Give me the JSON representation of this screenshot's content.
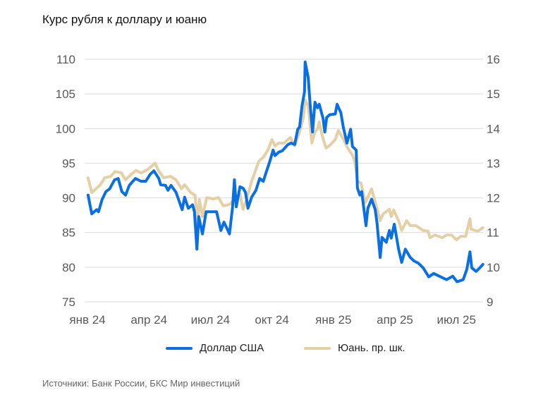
{
  "title": "Курс рубля к доллару и юаню",
  "source": "Источники: Банк России, БКС Мир инвестиций",
  "chart_data": {
    "type": "line",
    "title": "Курс рубля к доллару и юаню",
    "x_unit": "quarters since Jan 2024",
    "x_ticks": [
      0,
      1,
      2,
      3,
      4,
      5,
      6
    ],
    "x_tick_labels": [
      "янв 24",
      "апр 24",
      "июл 24",
      "окт 24",
      "янв 25",
      "апр 25",
      "июл 25"
    ],
    "xlim": [
      0,
      6.44
    ],
    "ylim_left": [
      75,
      110
    ],
    "ylim_right": [
      9,
      16
    ],
    "y_left_ticks": [
      "75",
      "80",
      "85",
      "90",
      "95",
      "100",
      "105",
      "110"
    ],
    "y_right_ticks": [
      "9",
      "10",
      "11",
      "12",
      "13",
      "14",
      "15",
      "16"
    ],
    "grid": true,
    "legend_position": "bottom",
    "series": [
      {
        "name": "Доллар США",
        "axis": "left",
        "color": "#0a6fe0",
        "x": [
          0.01,
          0.07,
          0.15,
          0.18,
          0.24,
          0.3,
          0.36,
          0.44,
          0.5,
          0.56,
          0.62,
          0.68,
          0.78,
          0.87,
          0.95,
          1.02,
          1.08,
          1.16,
          1.19,
          1.27,
          1.31,
          1.36,
          1.44,
          1.54,
          1.58,
          1.64,
          1.71,
          1.74,
          1.78,
          1.81,
          1.87,
          1.93,
          2.02,
          2.1,
          2.17,
          2.22,
          2.31,
          2.36,
          2.39,
          2.42,
          2.48,
          2.53,
          2.57,
          2.61,
          2.67,
          2.74,
          2.8,
          2.86,
          2.91,
          2.96,
          3.02,
          3.05,
          3.11,
          3.17,
          3.26,
          3.31,
          3.37,
          3.42,
          3.45,
          3.49,
          3.53,
          3.54,
          3.59,
          3.62,
          3.66,
          3.7,
          3.74,
          3.77,
          3.83,
          3.86,
          3.89,
          3.94,
          4.03,
          4.06,
          4.12,
          4.16,
          4.22,
          4.28,
          4.31,
          4.37,
          4.39,
          4.43,
          4.46,
          4.53,
          4.56,
          4.62,
          4.68,
          4.71,
          4.76,
          4.79,
          4.86,
          4.91,
          4.94,
          4.99,
          5.06,
          5.11,
          5.17,
          5.25,
          5.31,
          5.38,
          5.46,
          5.55,
          5.63,
          5.72,
          5.84,
          5.94,
          6.01,
          6.11,
          6.17,
          6.22,
          6.25,
          6.32,
          6.38,
          6.43
        ],
        "values": [
          90.4,
          87.7,
          88.3,
          88.0,
          89.8,
          90.9,
          91.3,
          92.6,
          92.8,
          90.9,
          90.4,
          91.8,
          92.8,
          92.4,
          92.4,
          93.4,
          93.9,
          92.8,
          91.9,
          91.8,
          91.1,
          91.8,
          90.8,
          88.3,
          90.1,
          88.5,
          89.0,
          88.0,
          82.6,
          87.3,
          84.8,
          88.0,
          88.0,
          88.0,
          85.3,
          86.5,
          84.8,
          88.7,
          92.6,
          88.7,
          91.6,
          91.4,
          90.8,
          88.5,
          90.1,
          91.1,
          92.8,
          92.4,
          93.8,
          95.1,
          96.9,
          96.1,
          96.6,
          96.8,
          97.7,
          97.9,
          97.7,
          99.9,
          100.2,
          103.3,
          105.3,
          109.6,
          107.4,
          103.6,
          99.5,
          103.8,
          103.0,
          103.5,
          101.5,
          99.5,
          101.6,
          102.0,
          102.1,
          103.5,
          102.3,
          100.2,
          97.9,
          99.9,
          97.4,
          96.9,
          91.4,
          90.4,
          90.9,
          86.0,
          88.5,
          89.8,
          88.3,
          86.3,
          81.4,
          84.3,
          83.6,
          85.3,
          84.2,
          86.2,
          82.6,
          80.7,
          82.6,
          81.4,
          80.9,
          80.6,
          79.9,
          78.6,
          79.1,
          78.7,
          78.2,
          78.7,
          77.9,
          78.2,
          79.7,
          82.2,
          79.9,
          79.4,
          79.9,
          80.4
        ]
      },
      {
        "name": "Юань. пр. шк.",
        "axis": "right",
        "color": "#e3d0a6",
        "x": [
          0.01,
          0.07,
          0.15,
          0.21,
          0.28,
          0.38,
          0.45,
          0.55,
          0.62,
          0.7,
          0.79,
          0.87,
          0.99,
          1.1,
          1.16,
          1.24,
          1.35,
          1.44,
          1.53,
          1.58,
          1.67,
          1.75,
          1.79,
          1.82,
          1.87,
          1.94,
          2.05,
          2.13,
          2.21,
          2.31,
          2.39,
          2.48,
          2.53,
          2.59,
          2.67,
          2.79,
          2.86,
          2.94,
          3.0,
          3.05,
          3.11,
          3.2,
          3.27,
          3.3,
          3.37,
          3.45,
          3.51,
          3.54,
          3.59,
          3.65,
          3.7,
          3.74,
          3.77,
          3.82,
          3.88,
          3.93,
          4.03,
          4.08,
          4.16,
          4.23,
          4.31,
          4.35,
          4.39,
          4.45,
          4.52,
          4.62,
          4.69,
          4.76,
          4.81,
          4.91,
          4.94,
          4.98,
          5.06,
          5.11,
          5.19,
          5.25,
          5.34,
          5.46,
          5.54,
          5.57,
          5.65,
          5.77,
          5.84,
          5.92,
          6.0,
          6.07,
          6.15,
          6.22,
          6.24,
          6.3,
          6.35,
          6.43
        ],
        "values": [
          12.58,
          12.15,
          12.28,
          12.38,
          12.58,
          12.62,
          12.76,
          12.72,
          12.52,
          12.66,
          12.79,
          12.72,
          12.83,
          13.0,
          12.77,
          12.58,
          12.62,
          12.52,
          12.26,
          12.38,
          12.17,
          12.07,
          11.24,
          11.95,
          11.46,
          12.01,
          11.97,
          12.01,
          11.77,
          11.81,
          11.95,
          12.11,
          11.67,
          11.95,
          12.48,
          13.07,
          13.17,
          13.4,
          13.68,
          13.5,
          13.58,
          13.58,
          13.7,
          13.74,
          13.5,
          13.9,
          14.31,
          14.82,
          14.66,
          13.58,
          13.9,
          13.98,
          14.19,
          13.78,
          13.44,
          13.5,
          13.68,
          13.94,
          13.7,
          13.44,
          13.23,
          13.03,
          12.48,
          12.42,
          11.87,
          12.26,
          11.81,
          11.34,
          11.54,
          11.67,
          11.46,
          11.65,
          11.34,
          11.06,
          11.34,
          11.2,
          11.2,
          11.06,
          11.04,
          10.85,
          10.93,
          10.85,
          10.93,
          10.93,
          10.79,
          10.89,
          10.89,
          11.4,
          11.1,
          11.06,
          11.04,
          11.14
        ]
      }
    ]
  }
}
